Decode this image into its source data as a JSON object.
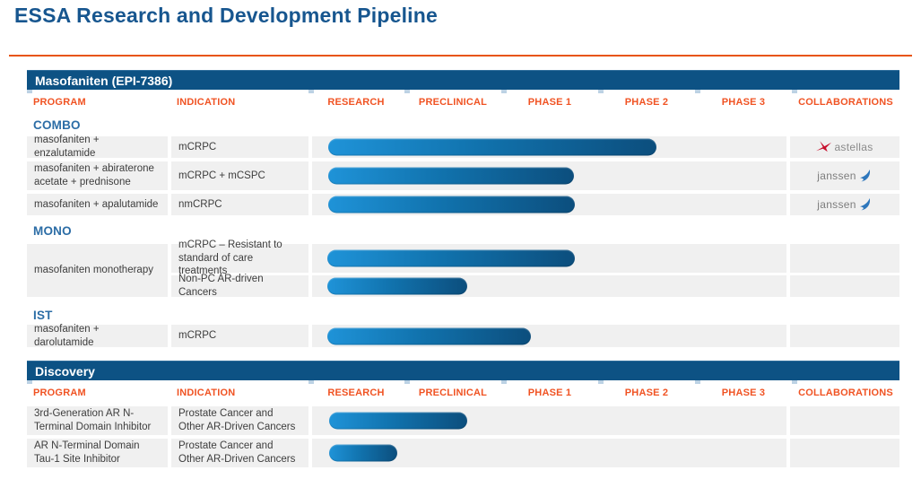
{
  "page": {
    "title": "ESSA Research and Development Pipeline"
  },
  "columns": [
    "PROGRAM",
    "INDICATION",
    "RESEARCH",
    "PRECLINICAL",
    "PHASE 1",
    "PHASE 2",
    "PHASE 3",
    "COLLABORATIONS"
  ],
  "colors": {
    "accent_orange": "#f05323",
    "divider_orange": "#e8540f",
    "band_blue": "#0d5284",
    "title_blue": "#17568f",
    "section_label_blue": "#2c6da6",
    "bar_gradient_start": "#1f93d8",
    "bar_gradient_end": "#0c4e7d",
    "cell_gray": "#f0f0f0"
  },
  "logos": {
    "astellas": {
      "label": "astellas",
      "icon": "astellas-star-icon",
      "icon_color": "#c8102e"
    },
    "janssen": {
      "label": "janssen",
      "icon": "janssen-swoosh-icon",
      "icon_color": "#2e77bc"
    }
  },
  "masofaniten": {
    "band_title": "Masofaniten (EPI-7386)",
    "groups": {
      "combo": {
        "label": "COMBO"
      },
      "mono": {
        "label": "MONO",
        "program": "masofaniten monotherapy"
      },
      "ist": {
        "label": "IST"
      }
    },
    "combo_rows": [
      {
        "program": "masofaniten + enzalutamide",
        "indication": "mCRPC",
        "bar": {
          "start": 3.4,
          "end": 72.6
        },
        "collaboration": "astellas"
      },
      {
        "program": "masofaniten + abiraterone acetate + prednisone",
        "indication": "mCRPC + mCSPC",
        "bar": {
          "start": 3.4,
          "end": 55.2
        },
        "collaboration": "janssen"
      },
      {
        "program": "masofaniten + apalutamide",
        "indication": "nmCRPC",
        "bar": {
          "start": 3.4,
          "end": 55.4
        },
        "collaboration": "janssen"
      }
    ],
    "mono_rows": [
      {
        "indication": "mCRPC – Resistant to standard of care treatments",
        "bar": {
          "start": 3.3,
          "end": 55.4
        }
      },
      {
        "indication": "Non-PC AR-driven Cancers",
        "bar": {
          "start": 3.3,
          "end": 32.7
        }
      }
    ],
    "ist_row": {
      "program": "masofaniten + darolutamide",
      "indication": "mCRPC",
      "bar": {
        "start": 3.3,
        "end": 46.1
      }
    }
  },
  "discovery": {
    "band_title": "Discovery",
    "rows": [
      {
        "program": "3rd-Generation AR N-Terminal Domain Inhibitor",
        "indication": "Prostate Cancer and Other AR-Driven Cancers",
        "bar": {
          "start": 3.6,
          "end": 32.7
        }
      },
      {
        "program": "AR N-Terminal Domain Tau-1 Site Inhibitor",
        "indication": "Prostate Cancer and Other AR-Driven Cancers",
        "bar": {
          "start": 3.6,
          "end": 18.0
        }
      }
    ]
  },
  "chart_data": {
    "type": "bar",
    "orientation": "horizontal-gantt",
    "phases": [
      "Research",
      "Preclinical",
      "Phase 1",
      "Phase 2",
      "Phase 3"
    ],
    "phase_axis_range": [
      0,
      5
    ],
    "entries": [
      {
        "section": "Masofaniten (EPI-7386)",
        "group": "COMBO",
        "program": "masofaniten + enzalutamide",
        "indication": "mCRPC",
        "start_phase": 0.2,
        "end_phase": 3.6,
        "collaboration": "astellas"
      },
      {
        "section": "Masofaniten (EPI-7386)",
        "group": "COMBO",
        "program": "masofaniten + abiraterone acetate + prednisone",
        "indication": "mCRPC + mCSPC",
        "start_phase": 0.2,
        "end_phase": 2.75,
        "collaboration": "janssen"
      },
      {
        "section": "Masofaniten (EPI-7386)",
        "group": "COMBO",
        "program": "masofaniten + apalutamide",
        "indication": "nmCRPC",
        "start_phase": 0.2,
        "end_phase": 2.75,
        "collaboration": "janssen"
      },
      {
        "section": "Masofaniten (EPI-7386)",
        "group": "MONO",
        "program": "masofaniten monotherapy",
        "indication": "mCRPC – Resistant to standard of care treatments",
        "start_phase": 0.2,
        "end_phase": 2.75,
        "collaboration": null
      },
      {
        "section": "Masofaniten (EPI-7386)",
        "group": "MONO",
        "program": "masofaniten monotherapy",
        "indication": "Non-PC AR-driven Cancers",
        "start_phase": 0.2,
        "end_phase": 1.65,
        "collaboration": null
      },
      {
        "section": "Masofaniten (EPI-7386)",
        "group": "IST",
        "program": "masofaniten + darolutamide",
        "indication": "mCRPC",
        "start_phase": 0.2,
        "end_phase": 2.3,
        "collaboration": null
      },
      {
        "section": "Discovery",
        "group": null,
        "program": "3rd-Generation AR N-Terminal Domain Inhibitor",
        "indication": "Prostate Cancer and Other AR-Driven Cancers",
        "start_phase": 0.2,
        "end_phase": 1.65,
        "collaboration": null
      },
      {
        "section": "Discovery",
        "group": null,
        "program": "AR N-Terminal Domain Tau-1 Site Inhibitor",
        "indication": "Prostate Cancer and Other AR-Driven Cancers",
        "start_phase": 0.2,
        "end_phase": 0.9,
        "collaboration": null
      }
    ],
    "title": "ESSA Research and Development Pipeline",
    "legend": false,
    "grid": false
  }
}
